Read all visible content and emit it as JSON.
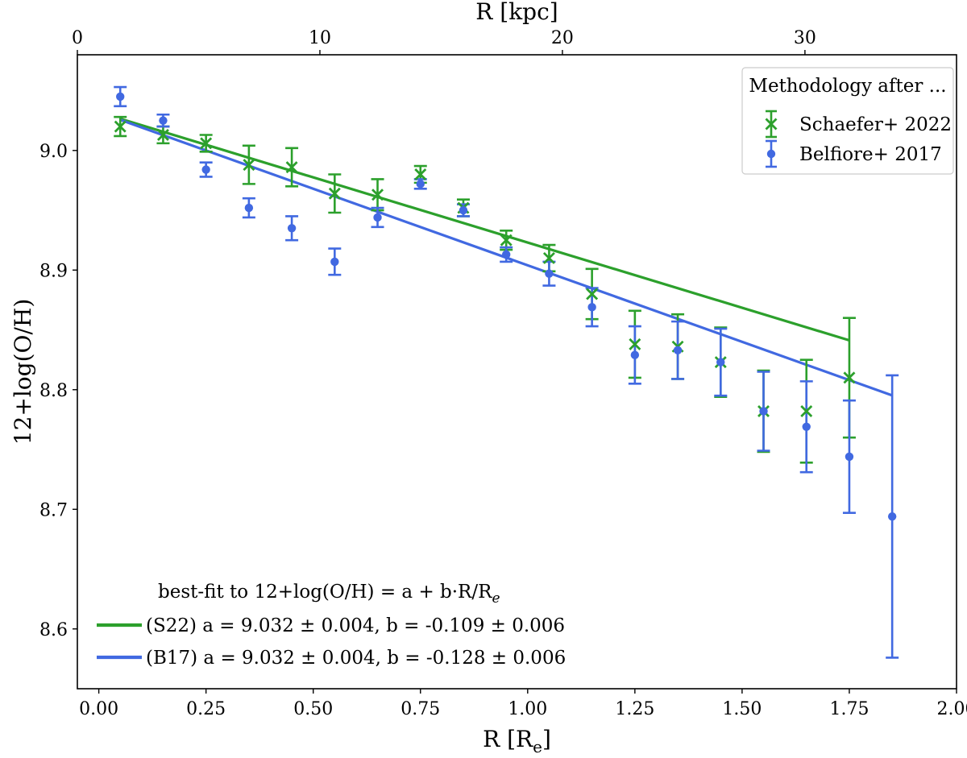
{
  "chart_data": {
    "type": "scatter",
    "xlabel_main": "R [R",
    "xlabel_sub": "e",
    "xlabel_close": "]",
    "xlabel_top": "R [kpc]",
    "ylabel": "12+log(O/H)",
    "xlim": [
      -0.05,
      2.0
    ],
    "ylim": [
      8.55,
      9.08
    ],
    "top_xlim_kpc": [
      0,
      36.25
    ],
    "x_ticks": [
      0.0,
      0.25,
      0.5,
      0.75,
      1.0,
      1.25,
      1.5,
      1.75,
      2.0
    ],
    "x_tick_labels": [
      "0.00",
      "0.25",
      "0.50",
      "0.75",
      "1.00",
      "1.25",
      "1.50",
      "1.75",
      "2.00"
    ],
    "y_ticks": [
      8.6,
      8.7,
      8.8,
      8.9,
      9.0
    ],
    "y_tick_labels": [
      "8.6",
      "8.7",
      "8.8",
      "8.9",
      "9.0"
    ],
    "top_ticks_kpc": [
      0,
      10,
      20,
      30
    ],
    "top_tick_labels": [
      "0",
      "10",
      "20",
      "30"
    ],
    "legend_title": "Methodology after ...",
    "legend_position": "top-right",
    "series": [
      {
        "name": "Schaefer+ 2022",
        "color": "#2ca02c",
        "marker": "x",
        "x": [
          0.05,
          0.15,
          0.25,
          0.35,
          0.45,
          0.55,
          0.65,
          0.75,
          0.85,
          0.95,
          1.05,
          1.15,
          1.25,
          1.35,
          1.45,
          1.55,
          1.65,
          1.75
        ],
        "y": [
          9.02,
          9.013,
          9.006,
          8.988,
          8.986,
          8.964,
          8.963,
          8.98,
          8.952,
          8.925,
          8.91,
          8.88,
          8.838,
          8.836,
          8.823,
          8.782,
          8.782,
          8.81
        ],
        "yerr": [
          0.008,
          0.007,
          0.007,
          0.016,
          0.016,
          0.016,
          0.013,
          0.007,
          0.007,
          0.008,
          0.011,
          0.021,
          0.028,
          0.027,
          0.029,
          0.034,
          0.043,
          0.05
        ]
      },
      {
        "name": "Belfiore+ 2017",
        "color": "#4169e1",
        "marker": "o",
        "x": [
          0.05,
          0.15,
          0.25,
          0.35,
          0.45,
          0.55,
          0.65,
          0.75,
          0.85,
          0.95,
          1.05,
          1.15,
          1.25,
          1.35,
          1.45,
          1.55,
          1.65,
          1.75,
          1.85
        ],
        "y": [
          9.045,
          9.025,
          8.984,
          8.952,
          8.935,
          8.907,
          8.944,
          8.972,
          8.95,
          8.913,
          8.897,
          8.869,
          8.829,
          8.833,
          8.823,
          8.782,
          8.769,
          8.744,
          8.694
        ],
        "yerr": [
          0.008,
          0.005,
          0.006,
          0.008,
          0.01,
          0.011,
          0.008,
          0.004,
          0.005,
          0.006,
          0.01,
          0.016,
          0.024,
          0.024,
          0.028,
          0.033,
          0.038,
          0.047,
          0.118
        ]
      }
    ],
    "fits": [
      {
        "label": "(S22) a = 9.032 ± 0.004, b = -0.109 ± 0.006",
        "color": "#2ca02c",
        "a": 9.032,
        "b": -0.109,
        "x_range": [
          0.05,
          1.75
        ]
      },
      {
        "label": "(B17) a = 9.032 ± 0.004, b = -0.128 ± 0.006",
        "color": "#4169e1",
        "a": 9.032,
        "b": -0.128,
        "x_range": [
          0.05,
          1.85
        ]
      }
    ],
    "fit_legend_title_main": "best-fit to 12+log(O/H) = a + b·R/R",
    "fit_legend_title_sub": "e",
    "fit_legend_position": "bottom-left"
  }
}
